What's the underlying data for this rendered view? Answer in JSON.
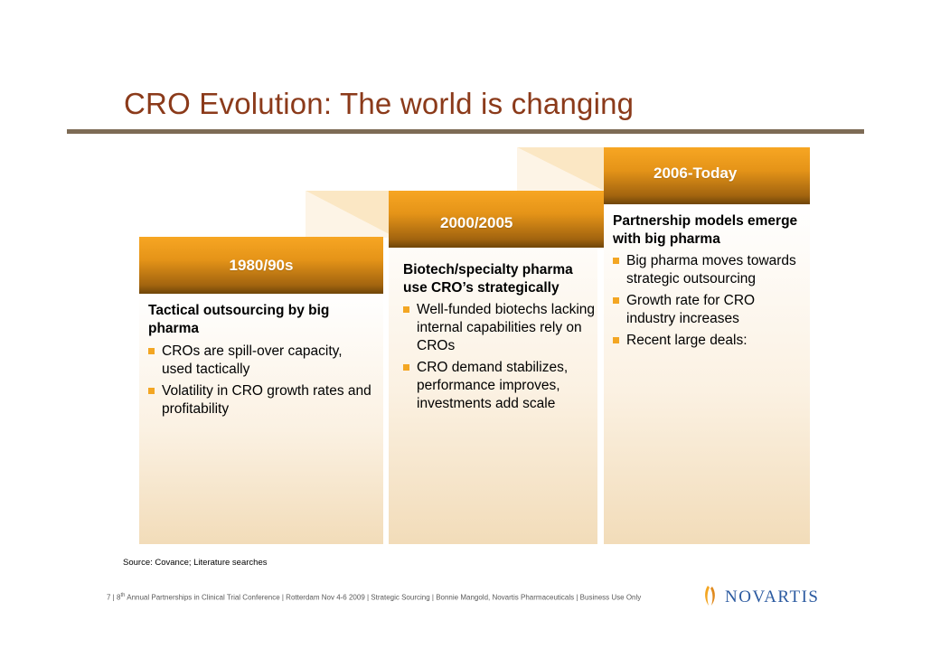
{
  "slide": {
    "title": "CRO Evolution: The world is changing"
  },
  "eras": [
    {
      "label": "1980/90s",
      "heading": "Tactical outsourcing by big pharma",
      "bullets": [
        "CROs are spill-over capacity, used tactically",
        "Volatility in CRO growth rates and profitability"
      ]
    },
    {
      "label": "2000/2005",
      "heading": "Biotech/specialty pharma use CRO’s strategically",
      "bullets": [
        "Well-funded biotechs lacking internal capabilities rely on CROs",
        "CRO demand stabilizes, performance improves, investments add scale"
      ]
    },
    {
      "label": "2006-Today",
      "heading": "Partnership models emerge with big pharma",
      "bullets": [
        "Big pharma moves towards strategic outsourcing",
        "Growth rate for CRO industry increases",
        "Recent large deals:"
      ]
    }
  ],
  "source": "Source: Covance; Literature searches",
  "footer": {
    "page": "7",
    "ordinal": "8",
    "ordinal_suffix": "th",
    "text": " Annual Partnerships in Clinical Trial Conference | Rotterdam Nov 4-6 2009 | Strategic Sourcing | Bonnie Mangold, Novartis Pharmaceuticals | Business Use Only"
  },
  "logo": {
    "name": "NOVARTIS",
    "color": "#2b5aa0",
    "flame_color": "#f3a623"
  },
  "colors": {
    "title": "#8b3a1a",
    "band": "#e59418",
    "bullet": "#f3a623",
    "rule": "#7d6b55"
  }
}
